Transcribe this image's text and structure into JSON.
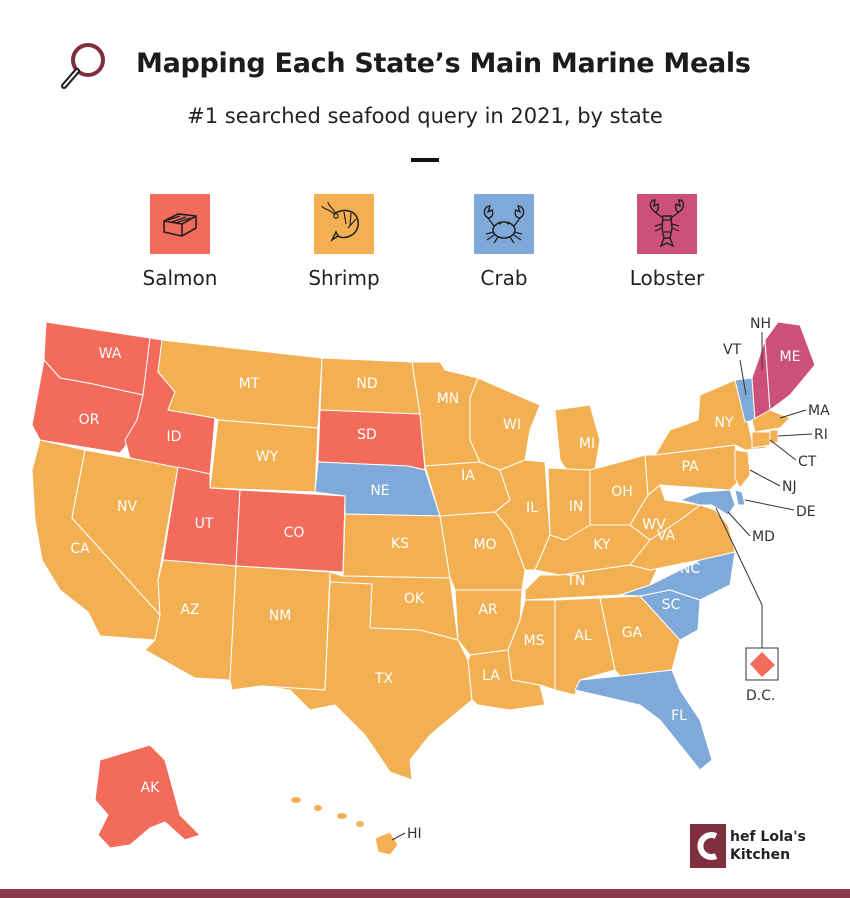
{
  "title": "Mapping Each State’s Main Marine Meals",
  "subtitle": "#1 searched seafood query in 2021, by state",
  "colors": {
    "salmon": "#f26b5b",
    "shrimp": "#f2b052",
    "crab": "#7fa9d8",
    "lobster": "#cc5077"
  },
  "legend": [
    {
      "key": "salmon",
      "label": "Salmon",
      "icon": "salmon-steak-icon"
    },
    {
      "key": "shrimp",
      "label": "Shrimp",
      "icon": "shrimp-icon"
    },
    {
      "key": "crab",
      "label": "Crab",
      "icon": "crab-icon"
    },
    {
      "key": "lobster",
      "label": "Lobster",
      "icon": "lobster-icon"
    }
  ],
  "states": {
    "WA": "salmon",
    "OR": "salmon",
    "ID": "salmon",
    "UT": "salmon",
    "CO": "salmon",
    "SD": "salmon",
    "AK": "salmon",
    "DC": "salmon",
    "NE": "crab",
    "MD": "crab",
    "DE": "crab",
    "NC": "crab",
    "SC": "crab",
    "FL": "crab",
    "VT": "crab",
    "ME": "lobster",
    "NH": "lobster",
    "MT": "shrimp",
    "WY": "shrimp",
    "NV": "shrimp",
    "CA": "shrimp",
    "AZ": "shrimp",
    "NM": "shrimp",
    "ND": "shrimp",
    "KS": "shrimp",
    "OK": "shrimp",
    "TX": "shrimp",
    "MN": "shrimp",
    "IA": "shrimp",
    "MO": "shrimp",
    "AR": "shrimp",
    "LA": "shrimp",
    "WI": "shrimp",
    "IL": "shrimp",
    "MI": "shrimp",
    "IN": "shrimp",
    "OH": "shrimp",
    "KY": "shrimp",
    "TN": "shrimp",
    "MS": "shrimp",
    "AL": "shrimp",
    "GA": "shrimp",
    "WV": "shrimp",
    "VA": "shrimp",
    "PA": "shrimp",
    "NY": "shrimp",
    "NJ": "shrimp",
    "CT": "shrimp",
    "RI": "shrimp",
    "MA": "shrimp",
    "HI": "shrimp"
  },
  "labels": {
    "WA": "WA",
    "OR": "OR",
    "CA": "CA",
    "NV": "NV",
    "ID": "ID",
    "MT": "MT",
    "WY": "WY",
    "UT": "UT",
    "CO": "CO",
    "AZ": "AZ",
    "NM": "NM",
    "ND": "ND",
    "SD": "SD",
    "NE": "NE",
    "KS": "KS",
    "OK": "OK",
    "TX": "TX",
    "MN": "MN",
    "IA": "IA",
    "MO": "MO",
    "AR": "AR",
    "LA": "LA",
    "WI": "WI",
    "IL": "IL",
    "MI": "MI",
    "IN": "IN",
    "OH": "OH",
    "KY": "KY",
    "TN": "TN",
    "MS": "MS",
    "AL": "AL",
    "GA": "GA",
    "FL": "FL",
    "SC": "SC",
    "NC": "NC",
    "VA": "VA",
    "WV": "WV",
    "PA": "PA",
    "NY": "NY",
    "ME": "ME",
    "AK": "AK",
    "VT": "VT",
    "NH": "NH",
    "MA": "MA",
    "RI": "RI",
    "CT": "CT",
    "NJ": "NJ",
    "DE": "DE",
    "MD": "MD",
    "HI": "HI",
    "DC": "D.C."
  },
  "brand": {
    "initial": "C",
    "line1": "hef Lola's",
    "line2": "Kitchen"
  }
}
